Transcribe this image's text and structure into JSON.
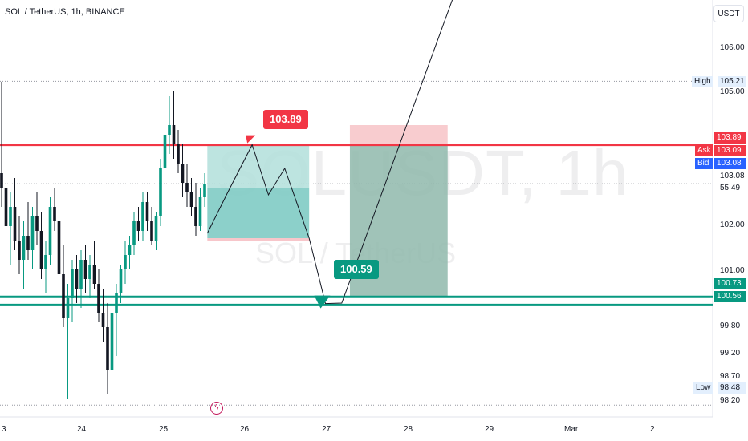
{
  "header": {
    "symbol_title": "SOL / TetherUS, 1h, BINANCE",
    "currency": "USDT"
  },
  "watermark": {
    "big": "SOLUSDT, 1h",
    "small": "SOL / TetherUS"
  },
  "price_scale": {
    "ticks": [
      "106.00",
      "105.00",
      "103.08",
      "55:49",
      "102.00",
      "101.00",
      "99.80",
      "99.20",
      "98.70",
      "98.20"
    ],
    "high_label": "High",
    "high_value": "105.21",
    "low_label": "Low",
    "low_value": "98.48",
    "resistance_tag": "103.89",
    "ask_label": "Ask",
    "ask_value": "103.09",
    "bid_label": "Bid",
    "bid_value": "103.08",
    "support_upper_tag": "100.73",
    "support_lower_tag": "100.56"
  },
  "time_axis": {
    "labels": [
      "3",
      "24",
      "25",
      "26",
      "27",
      "28",
      "29",
      "Mar",
      "2"
    ]
  },
  "annotations": {
    "top_callout": "103.89",
    "bottom_callout": "100.59"
  },
  "colors": {
    "resistance": "#f23645",
    "support": "#089981",
    "up_candle": "#089981",
    "down_candle": "#131722",
    "target_zone": "#80cbc4",
    "stop_zone": "#f7c6ca",
    "bid_bg": "#2962ff"
  },
  "icons": {
    "alert": "lightning-alert-icon"
  },
  "chart_data": {
    "type": "candlestick",
    "title": "SOL / TetherUS, 1h, BINANCE",
    "y_axis_range": [
      98.2,
      106.3
    ],
    "x_labels": [
      "3",
      "24",
      "25",
      "26",
      "27",
      "28",
      "29",
      "Mar",
      "2"
    ],
    "high": 105.21,
    "low": 98.48,
    "horizontal_levels": [
      103.89,
      100.73,
      100.56
    ],
    "current_ask": 103.09,
    "current_bid": 103.08,
    "projection_points": [
      {
        "x": 25.55,
        "y": 102.05
      },
      {
        "x": 25.8,
        "y": 102.9
      },
      {
        "x": 26.1,
        "y": 103.89
      },
      {
        "x": 26.3,
        "y": 102.85
      },
      {
        "x": 26.5,
        "y": 103.4
      },
      {
        "x": 26.8,
        "y": 101.95
      },
      {
        "x": 27.0,
        "y": 100.59
      },
      {
        "x": 27.2,
        "y": 100.6
      },
      {
        "x": 28.6,
        "y": 107.1
      }
    ],
    "candles_ohlc": [
      {
        "o": 103.3,
        "h": 105.2,
        "l": 102.6,
        "c": 103.0
      },
      {
        "o": 103.0,
        "h": 103.6,
        "l": 101.9,
        "c": 102.2
      },
      {
        "o": 102.2,
        "h": 102.9,
        "l": 101.4,
        "c": 102.6
      },
      {
        "o": 102.6,
        "h": 103.2,
        "l": 101.7,
        "c": 101.9
      },
      {
        "o": 101.9,
        "h": 102.4,
        "l": 101.2,
        "c": 101.5
      },
      {
        "o": 101.5,
        "h": 102.3,
        "l": 100.9,
        "c": 102.0
      },
      {
        "o": 102.0,
        "h": 102.7,
        "l": 101.5,
        "c": 101.7
      },
      {
        "o": 101.7,
        "h": 102.6,
        "l": 101.3,
        "c": 102.4
      },
      {
        "o": 102.4,
        "h": 102.9,
        "l": 101.8,
        "c": 102.1
      },
      {
        "o": 102.1,
        "h": 102.5,
        "l": 101.1,
        "c": 101.3
      },
      {
        "o": 101.3,
        "h": 101.9,
        "l": 100.8,
        "c": 101.6
      },
      {
        "o": 101.6,
        "h": 102.8,
        "l": 101.4,
        "c": 102.6
      },
      {
        "o": 102.6,
        "h": 103.0,
        "l": 102.1,
        "c": 102.3
      },
      {
        "o": 102.3,
        "h": 102.7,
        "l": 101.0,
        "c": 101.2
      },
      {
        "o": 101.2,
        "h": 101.8,
        "l": 100.1,
        "c": 100.3
      },
      {
        "o": 100.3,
        "h": 101.0,
        "l": 98.6,
        "c": 100.7
      },
      {
        "o": 100.7,
        "h": 101.5,
        "l": 100.2,
        "c": 101.3
      },
      {
        "o": 101.3,
        "h": 101.6,
        "l": 100.6,
        "c": 100.9
      },
      {
        "o": 100.9,
        "h": 101.7,
        "l": 100.5,
        "c": 101.5
      },
      {
        "o": 101.5,
        "h": 101.8,
        "l": 100.8,
        "c": 101.1
      },
      {
        "o": 101.1,
        "h": 101.6,
        "l": 100.7,
        "c": 101.4
      },
      {
        "o": 101.4,
        "h": 101.9,
        "l": 100.9,
        "c": 101.0
      },
      {
        "o": 101.0,
        "h": 101.3,
        "l": 100.2,
        "c": 100.4
      },
      {
        "o": 100.4,
        "h": 100.9,
        "l": 99.8,
        "c": 100.1
      },
      {
        "o": 100.1,
        "h": 100.6,
        "l": 98.7,
        "c": 99.2
      },
      {
        "o": 99.2,
        "h": 100.6,
        "l": 98.48,
        "c": 100.4
      },
      {
        "o": 100.4,
        "h": 101.0,
        "l": 99.5,
        "c": 100.8
      },
      {
        "o": 100.8,
        "h": 101.4,
        "l": 100.6,
        "c": 101.3
      },
      {
        "o": 101.3,
        "h": 101.9,
        "l": 101.0,
        "c": 101.6
      },
      {
        "o": 101.6,
        "h": 102.0,
        "l": 101.3,
        "c": 101.8
      },
      {
        "o": 101.8,
        "h": 102.5,
        "l": 101.6,
        "c": 102.3
      },
      {
        "o": 102.3,
        "h": 102.6,
        "l": 101.9,
        "c": 102.1
      },
      {
        "o": 102.1,
        "h": 102.9,
        "l": 101.9,
        "c": 102.7
      },
      {
        "o": 102.7,
        "h": 102.9,
        "l": 102.1,
        "c": 102.3
      },
      {
        "o": 102.3,
        "h": 102.6,
        "l": 101.8,
        "c": 101.9
      },
      {
        "o": 101.9,
        "h": 102.5,
        "l": 101.7,
        "c": 102.4
      },
      {
        "o": 102.4,
        "h": 103.6,
        "l": 102.2,
        "c": 103.4
      },
      {
        "o": 103.4,
        "h": 104.3,
        "l": 103.1,
        "c": 104.1
      },
      {
        "o": 104.1,
        "h": 104.9,
        "l": 103.7,
        "c": 104.3
      },
      {
        "o": 104.3,
        "h": 105.0,
        "l": 103.6,
        "c": 103.9
      },
      {
        "o": 103.9,
        "h": 104.2,
        "l": 103.3,
        "c": 103.5
      },
      {
        "o": 103.5,
        "h": 103.9,
        "l": 102.8,
        "c": 103.1
      },
      {
        "o": 103.1,
        "h": 103.5,
        "l": 102.6,
        "c": 102.9
      },
      {
        "o": 102.9,
        "h": 103.2,
        "l": 102.4,
        "c": 102.6
      },
      {
        "o": 102.6,
        "h": 103.1,
        "l": 102.0,
        "c": 102.2
      },
      {
        "o": 102.2,
        "h": 103.0,
        "l": 102.1,
        "c": 102.8
      },
      {
        "o": 102.8,
        "h": 103.3,
        "l": 102.6,
        "c": 103.08
      }
    ]
  }
}
